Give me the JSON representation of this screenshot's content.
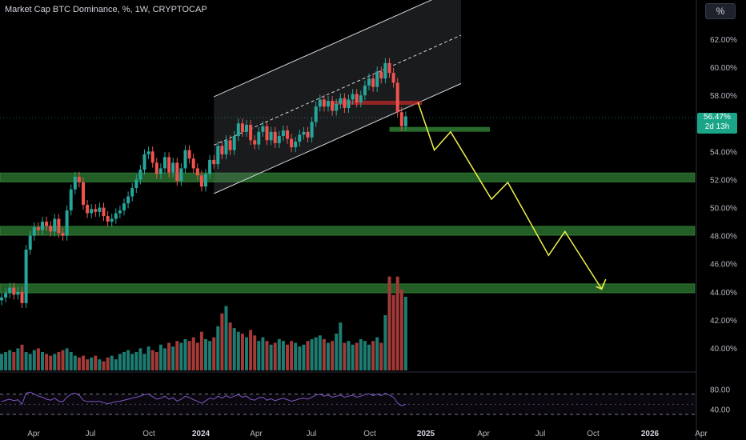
{
  "header": {
    "title": "Market Cap BTC Dominance, %, 1W, CRYPTOCAP",
    "unit_button": "%"
  },
  "price_badge": {
    "value": "56.47%",
    "countdown": "2d 13h"
  },
  "colors": {
    "up": "#26a69a",
    "down": "#ef5350",
    "up_vol": "#1d7c72",
    "down_vol": "#a33a38",
    "zone": "#2e7d32",
    "arrow": "#f0f04a",
    "rsi": "#7e57c2",
    "resistance": "#c62828"
  },
  "chart_data": {
    "type": "candlestick",
    "ylim": [
      38.5,
      63.5
    ],
    "y_ticks": [
      40,
      42,
      44,
      46,
      48,
      50,
      52,
      54,
      56,
      58,
      60,
      62
    ],
    "y_tick_labels": [
      "40.00%",
      "42.00%",
      "44.00%",
      "46.00%",
      "48.00%",
      "50.00%",
      "52.00%",
      "54.00%",
      "56.00%",
      "58.00%",
      "60.00%",
      "62.00%"
    ],
    "x_ticks": [
      {
        "label": "Apr",
        "bold": false
      },
      {
        "label": "Jul",
        "bold": false
      },
      {
        "label": "Oct",
        "bold": false
      },
      {
        "label": "2024",
        "bold": true
      },
      {
        "label": "Apr",
        "bold": false
      },
      {
        "label": "Jul",
        "bold": false
      },
      {
        "label": "Oct",
        "bold": false
      },
      {
        "label": "2025",
        "bold": true
      },
      {
        "label": "Apr",
        "bold": false
      },
      {
        "label": "Jul",
        "bold": false
      },
      {
        "label": "Oct",
        "bold": false
      },
      {
        "label": "2026",
        "bold": true
      },
      {
        "label": "Apr",
        "bold": false
      }
    ],
    "close": [
      43.6,
      43.9,
      44.3,
      43.8,
      44.0,
      43.2,
      47.0,
      48.0,
      48.6,
      48.4,
      49.0,
      48.7,
      48.3,
      49.2,
      48.2,
      48.0,
      49.8,
      51.3,
      52.2,
      51.8,
      50.2,
      49.6,
      49.9,
      49.7,
      50.0,
      49.4,
      49.0,
      49.2,
      49.6,
      49.8,
      50.3,
      50.8,
      51.4,
      52.0,
      52.7,
      53.8,
      54.0,
      53.2,
      52.4,
      52.8,
      53.6,
      52.5,
      53.2,
      51.9,
      52.8,
      54.1,
      53.5,
      52.8,
      52.3,
      51.5,
      52.4,
      53.4,
      53.1,
      54.4,
      53.8,
      54.8,
      54.1,
      55.1,
      56.0,
      55.4,
      55.9,
      54.8,
      54.5,
      55.4,
      55.8,
      54.8,
      55.4,
      54.6,
      55.1,
      55.5,
      54.9,
      54.3,
      54.7,
      55.2,
      55.4,
      55.0,
      56.1,
      57.2,
      57.7,
      57.2,
      57.6,
      56.9,
      57.4,
      57.8,
      57.1,
      57.7,
      58.1,
      57.5,
      58.0,
      58.7,
      59.2,
      58.6,
      59.7,
      59.2,
      60.3,
      59.6,
      58.9,
      56.8,
      55.8,
      56.5
    ],
    "volume": [
      0.9,
      1.0,
      1.1,
      1.0,
      1.2,
      1.4,
      1.0,
      0.9,
      1.1,
      1.2,
      1.0,
      0.9,
      0.8,
      0.9,
      1.0,
      1.1,
      1.2,
      1.0,
      0.8,
      0.7,
      0.8,
      0.6,
      0.7,
      0.8,
      0.6,
      0.5,
      0.7,
      0.8,
      0.6,
      0.9,
      1.0,
      1.1,
      0.9,
      1.0,
      1.2,
      0.9,
      1.3,
      1.1,
      1.0,
      1.4,
      1.2,
      1.5,
      1.3,
      1.6,
      1.5,
      1.7,
      1.6,
      1.8,
      1.5,
      2.1,
      1.7,
      1.6,
      1.8,
      2.4,
      3.1,
      3.5,
      2.6,
      2.3,
      2.1,
      2.0,
      1.8,
      2.2,
      1.9,
      1.6,
      1.8,
      1.6,
      1.4,
      1.5,
      1.7,
      1.6,
      1.4,
      1.6,
      1.5,
      1.3,
      1.4,
      1.6,
      1.7,
      1.8,
      1.9,
      1.7,
      1.5,
      1.6,
      2.0,
      2.6,
      1.5,
      1.6,
      1.4,
      1.5,
      1.7,
      1.6,
      1.4,
      1.6,
      1.8,
      1.5,
      3.0,
      5.1,
      4.1,
      5.1,
      4.4,
      4.0
    ],
    "rsi": [
      55,
      58,
      60,
      57,
      59,
      50,
      72,
      74,
      70,
      66,
      64,
      60,
      58,
      62,
      56,
      55,
      64,
      70,
      72,
      68,
      58,
      55,
      56,
      55,
      56,
      53,
      51,
      53,
      55,
      56,
      58,
      60,
      62,
      64,
      66,
      69,
      70,
      65,
      60,
      62,
      66,
      60,
      63,
      56,
      60,
      66,
      63,
      59,
      56,
      52,
      57,
      62,
      60,
      66,
      62,
      67,
      63,
      66,
      69,
      64,
      66,
      60,
      58,
      63,
      64,
      58,
      61,
      57,
      60,
      62,
      59,
      56,
      58,
      61,
      62,
      60,
      64,
      68,
      70,
      66,
      68,
      64,
      66,
      68,
      64,
      66,
      68,
      64,
      66,
      69,
      71,
      67,
      70,
      67,
      72,
      68,
      64,
      52,
      47,
      50
    ],
    "channel": {
      "lower_start": [
        51.0,
        52
      ],
      "lower_end": [
        57.6,
        103
      ],
      "width": 6.9
    },
    "support_zones": [
      {
        "low": 52.0,
        "high": 52.3
      },
      {
        "low": 48.2,
        "high": 48.5
      },
      {
        "low": 44.1,
        "high": 44.4
      }
    ],
    "local_zone": {
      "low": 55.55,
      "high": 55.75
    },
    "resistance_zone": {
      "low": 57.3,
      "high": 57.5
    },
    "projection": [
      [
        102,
        57.5
      ],
      [
        106,
        54.1
      ],
      [
        110,
        55.4
      ],
      [
        120,
        50.6
      ],
      [
        124,
        51.8
      ],
      [
        134,
        46.6
      ],
      [
        138,
        48.3
      ],
      [
        147,
        44.2
      ],
      [
        148,
        44.9
      ]
    ]
  }
}
